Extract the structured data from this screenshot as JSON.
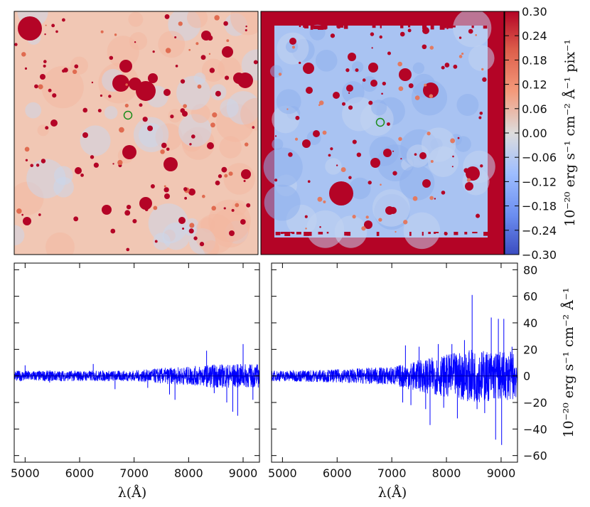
{
  "colorbar": {
    "ticks": [
      "0.30",
      "0.24",
      "0.18",
      "0.12",
      "0.06",
      "0.00",
      "−0.06",
      "−0.12",
      "−0.18",
      "−0.24",
      "−0.30"
    ],
    "label": "10⁻²⁰ erg s⁻¹ cm⁻² Å⁻¹ pix⁻¹",
    "min": -0.3,
    "max": 0.3,
    "cmap": "coolwarm"
  },
  "spectra_axis": {
    "xlabel": "λ(Å)",
    "ylabel": "10⁻²⁰ erg s⁻¹ cm⁻² Å⁻¹",
    "xticks": [
      "5000",
      "6000",
      "7000",
      "8000",
      "9000"
    ],
    "yticks": [
      "80",
      "60",
      "40",
      "20",
      "0",
      "−20",
      "−40",
      "−60"
    ]
  },
  "colors": {
    "spectrum": "#0000ff",
    "marker_circle": "#1a8c1a",
    "map_positive": "#b40426",
    "map_negative": "#3b4cc0"
  },
  "chart_data": [
    {
      "type": "heatmap",
      "panel": "top-left",
      "description_visible": "flux map with red sources on light red/grey background, green circle marker",
      "zlim": [
        -0.3,
        0.3
      ]
    },
    {
      "type": "heatmap",
      "panel": "top-right",
      "description_visible": "flux map with blue background, saturated red border frame, green circle marker",
      "zlim": [
        -0.3,
        0.3
      ]
    },
    {
      "type": "line",
      "panel": "bottom-left",
      "xlim": [
        4800,
        9300
      ],
      "ylim": [
        -65,
        85
      ],
      "series": [
        {
          "color": "#0000ff",
          "noise_envelope": [
            [
              4800,
              4
            ],
            [
              6000,
              4
            ],
            [
              7000,
              4
            ],
            [
              7500,
              6
            ],
            [
              8000,
              7
            ],
            [
              8500,
              9
            ],
            [
              9300,
              9
            ]
          ],
          "peaks": [
            [
              5000,
              8
            ],
            [
              5450,
              -5
            ],
            [
              6250,
              9
            ],
            [
              6650,
              -10
            ],
            [
              7250,
              -9
            ],
            [
              7650,
              -14
            ],
            [
              7750,
              -18
            ],
            [
              8330,
              19
            ],
            [
              8470,
              -13
            ],
            [
              8700,
              -20
            ],
            [
              8810,
              -27
            ],
            [
              8900,
              -30
            ],
            [
              9000,
              24
            ],
            [
              9180,
              -18
            ]
          ]
        }
      ]
    },
    {
      "type": "line",
      "panel": "bottom-right",
      "xlim": [
        4800,
        9300
      ],
      "ylim": [
        -65,
        85
      ],
      "series": [
        {
          "color": "#0000ff",
          "noise_envelope": [
            [
              4800,
              4
            ],
            [
              6000,
              5
            ],
            [
              7000,
              7
            ],
            [
              7500,
              12
            ],
            [
              8000,
              16
            ],
            [
              8500,
              20
            ],
            [
              9300,
              18
            ]
          ],
          "peaks": [
            [
              7200,
              -20
            ],
            [
              7250,
              23
            ],
            [
              7350,
              -22
            ],
            [
              7500,
              22
            ],
            [
              7620,
              -25
            ],
            [
              7700,
              -37
            ],
            [
              7850,
              24
            ],
            [
              7950,
              -24
            ],
            [
              8100,
              24
            ],
            [
              8200,
              -32
            ],
            [
              8330,
              27
            ],
            [
              8470,
              61
            ],
            [
              8560,
              -25
            ],
            [
              8700,
              -28
            ],
            [
              8820,
              44
            ],
            [
              8900,
              -48
            ],
            [
              8950,
              43
            ],
            [
              9010,
              -52
            ],
            [
              9050,
              43
            ],
            [
              9200,
              22
            ]
          ]
        }
      ]
    }
  ]
}
